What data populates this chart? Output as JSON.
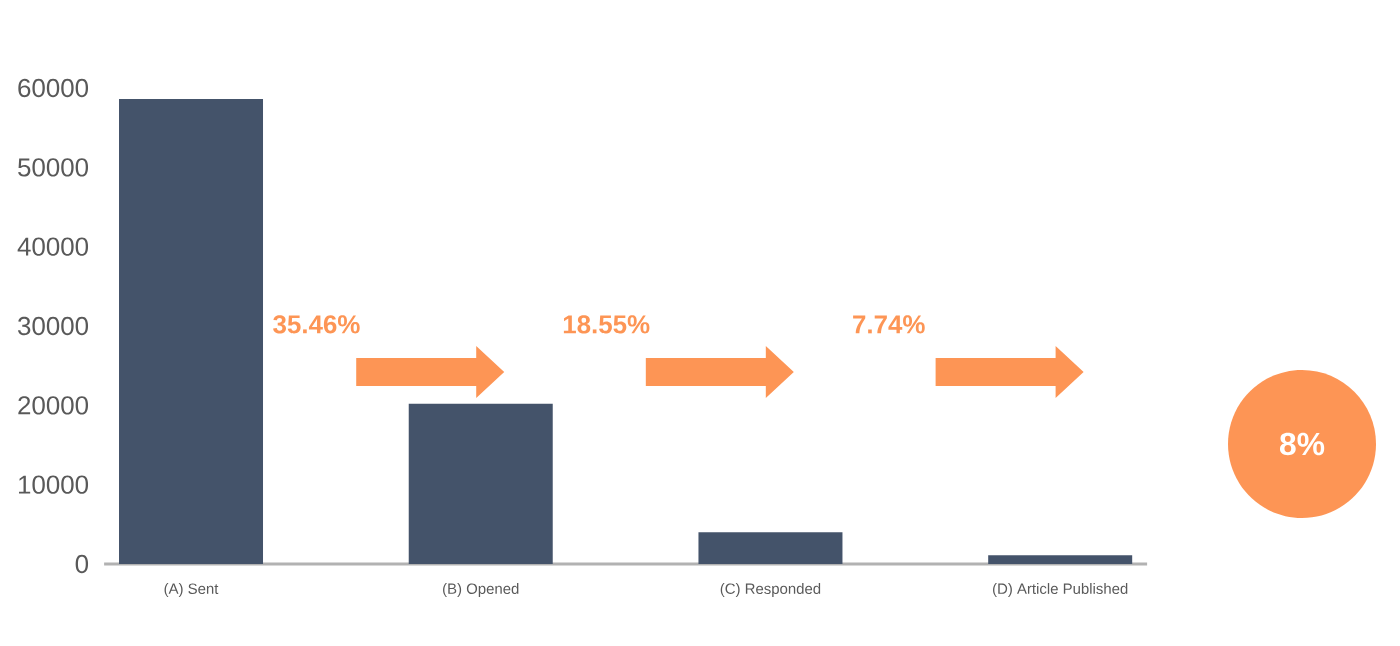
{
  "chart_data": {
    "type": "bar",
    "categories": [
      "(A) Sent",
      "(B) Opened",
      "(C) Responded",
      "(D) Article Published"
    ],
    "values": [
      58600,
      20200,
      4000,
      1100
    ],
    "color": "#44536a",
    "ylim": [
      0,
      60000
    ],
    "yticks": [
      0,
      10000,
      20000,
      30000,
      40000,
      50000,
      60000
    ],
    "annotations": [
      "35.46%",
      "18.55%",
      "7.74%",
      "8%"
    ]
  }
}
